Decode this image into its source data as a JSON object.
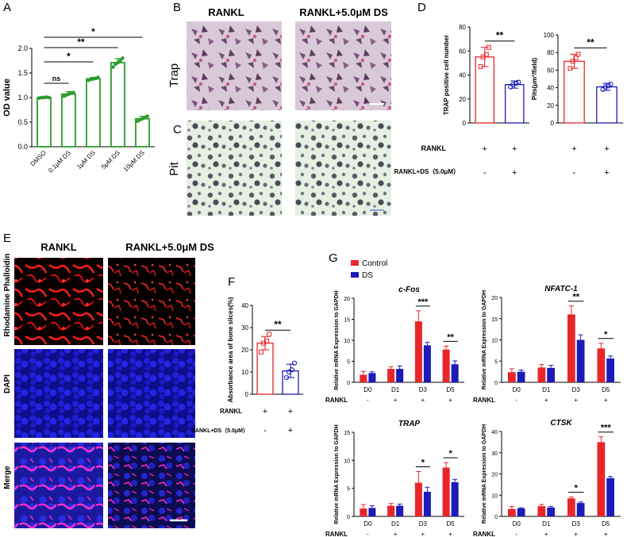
{
  "panel_letters": {
    "a": "A",
    "b": "B",
    "c": "C",
    "d": "D",
    "e": "E",
    "f": "F",
    "g": "G"
  },
  "panel_b": {
    "col1": "RANKL",
    "col2": "RANKL+5.0μM DS",
    "row1": "Trap"
  },
  "panel_c": {
    "row1": "Pit"
  },
  "panel_e": {
    "col1": "RANKL",
    "col2": "RANKL+5.0μM DS",
    "rows": [
      "Rhodamine Phalloidin",
      "DAPI",
      "Merge"
    ]
  },
  "legend_g": {
    "control": "Control",
    "ds": "DS"
  },
  "colors": {
    "control": "#e8262a",
    "ds": "#1b1bb8",
    "green": "#2e9b2e",
    "bg_trap": "#d6c7d6",
    "bg_pit": "#e4efe0"
  },
  "chart_data": [
    {
      "id": "A",
      "type": "bar",
      "ylabel": "OD value",
      "ylim": [
        0,
        2.0
      ],
      "yticks": [
        "0.0",
        "0.5",
        "1.0",
        "1.5",
        "2.0"
      ],
      "categories": [
        "DMSO",
        "0.1μM DS",
        "1μM DS",
        "5μM DS",
        "10μM DS"
      ],
      "values": [
        1.0,
        1.07,
        1.38,
        1.71,
        0.57
      ],
      "errors": [
        0.01,
        0.05,
        0.03,
        0.08,
        0.05
      ],
      "points": [
        [
          0.99,
          1.0,
          1.0,
          1.01,
          1.0
        ],
        [
          1.03,
          1.05,
          1.07,
          1.09,
          1.1
        ],
        [
          1.35,
          1.37,
          1.38,
          1.39,
          1.41
        ],
        [
          1.62,
          1.68,
          1.71,
          1.75,
          1.8
        ],
        [
          0.52,
          0.55,
          0.57,
          0.59,
          0.62
        ]
      ],
      "sig": [
        {
          "from": 0,
          "to": 1,
          "label": "ns"
        },
        {
          "from": 0,
          "to": 2,
          "label": "*"
        },
        {
          "from": 0,
          "to": 3,
          "label": "**"
        },
        {
          "from": 0,
          "to": 4,
          "label": "*"
        }
      ]
    },
    {
      "id": "D1",
      "type": "bar",
      "ylabel": "TRAP positive cell number",
      "ylim": [
        0,
        80
      ],
      "yticks": [
        "0",
        "20",
        "40",
        "60",
        "80"
      ],
      "values": [
        55,
        32
      ],
      "errors": [
        8,
        3
      ],
      "points": [
        [
          47,
          55,
          57,
          63
        ],
        [
          30,
          32,
          33,
          34
        ]
      ],
      "sig": "**",
      "rankl": [
        "+",
        "+"
      ],
      "ds": [
        "-",
        "+"
      ]
    },
    {
      "id": "D2",
      "type": "bar",
      "ylabel": "Pits(μm²/field)",
      "ylim": [
        0,
        100
      ],
      "yticks": [
        "0",
        "20",
        "40",
        "60",
        "80",
        "100"
      ],
      "values": [
        70,
        41
      ],
      "errors": [
        8,
        4
      ],
      "points": [
        [
          62,
          70,
          74,
          78
        ],
        [
          38,
          41,
          42,
          44
        ]
      ],
      "sig": "**",
      "rankl": [
        "+",
        "+"
      ],
      "ds": [
        "-",
        "+"
      ]
    },
    {
      "id": "F",
      "type": "bar",
      "ylabel": "Absorbance area of bone slices(%)",
      "ylim": [
        0,
        40
      ],
      "yticks": [
        "0",
        "10",
        "20",
        "30",
        "40"
      ],
      "values": [
        23,
        10.5
      ],
      "errors": [
        3,
        3
      ],
      "points": [
        [
          19,
          23,
          24,
          27
        ],
        [
          7.5,
          10,
          11,
          14
        ]
      ],
      "sig": "**",
      "rankl": [
        "+",
        "+"
      ],
      "ds": [
        "-",
        "+"
      ]
    },
    {
      "id": "G1",
      "type": "bar",
      "title": "c-Fos",
      "ylabel": "Relative mRNA Expression to GAPDH",
      "ylim": [
        0,
        20
      ],
      "yticks": [
        "0",
        "5",
        "10",
        "15",
        "20"
      ],
      "categories": [
        "D0",
        "D1",
        "D3",
        "D5"
      ],
      "series": [
        {
          "name": "Control",
          "values": [
            1.8,
            3.2,
            14.5,
            7.8
          ],
          "errors": [
            0.8,
            0.5,
            2.5,
            0.8
          ]
        },
        {
          "name": "DS",
          "values": [
            2.2,
            3.2,
            8.8,
            4.3
          ],
          "errors": [
            0.3,
            0.7,
            0.7,
            0.8
          ]
        }
      ],
      "sig": [
        {
          "cat": 2,
          "label": "***"
        },
        {
          "cat": 3,
          "label": "**"
        }
      ],
      "rankl": [
        "-",
        "+",
        "+",
        "+"
      ]
    },
    {
      "id": "G2",
      "type": "bar",
      "title": "NFATC-1",
      "ylabel": "Relative mRNA Expression to GAPDH",
      "ylim": [
        0,
        20
      ],
      "yticks": [
        "0",
        "5",
        "10",
        "15",
        "20"
      ],
      "categories": [
        "D0",
        "D1",
        "D3",
        "D5"
      ],
      "series": [
        {
          "name": "Control",
          "values": [
            2.4,
            3.5,
            16,
            8
          ],
          "errors": [
            0.8,
            0.7,
            2,
            1.2
          ]
        },
        {
          "name": "DS",
          "values": [
            2.5,
            3.4,
            10,
            5.6
          ],
          "errors": [
            0.4,
            0.6,
            1.2,
            0.6
          ]
        }
      ],
      "sig": [
        {
          "cat": 2,
          "label": "**"
        },
        {
          "cat": 3,
          "label": "*"
        }
      ],
      "rankl": [
        "-",
        "+",
        "+",
        "+"
      ]
    },
    {
      "id": "G3",
      "type": "bar",
      "title": "TRAP",
      "ylabel": "Relative mRNA Expression to GAPDH",
      "ylim": [
        0,
        15
      ],
      "yticks": [
        "0",
        "5",
        "10",
        "15"
      ],
      "categories": [
        "D0",
        "D1",
        "D3",
        "D5"
      ],
      "series": [
        {
          "name": "Control",
          "values": [
            1.4,
            1.9,
            6.0,
            8.7
          ],
          "errors": [
            0.7,
            0.4,
            2,
            0.9
          ]
        },
        {
          "name": "DS",
          "values": [
            1.5,
            1.9,
            4.4,
            6.1
          ],
          "errors": [
            0.4,
            0.3,
            0.8,
            0.5
          ]
        }
      ],
      "sig": [
        {
          "cat": 2,
          "label": "*"
        },
        {
          "cat": 3,
          "label": "*"
        }
      ],
      "rankl": [
        "-",
        "+",
        "+",
        "+"
      ]
    },
    {
      "id": "G4",
      "type": "bar",
      "title": "CTSK",
      "ylabel": "Relative mRNA Expression to GAPDH",
      "ylim": [
        0,
        40
      ],
      "yticks": [
        "0",
        "10",
        "20",
        "30",
        "40"
      ],
      "categories": [
        "D0",
        "D1",
        "D3",
        "D5"
      ],
      "series": [
        {
          "name": "Control",
          "values": [
            3.5,
            4.8,
            8.5,
            35
          ],
          "errors": [
            1.2,
            0.8,
            0.6,
            2.5
          ]
        },
        {
          "name": "DS",
          "values": [
            3.8,
            4.2,
            6.3,
            18
          ],
          "errors": [
            0.3,
            0.5,
            0.5,
            0.8
          ]
        }
      ],
      "sig": [
        {
          "cat": 2,
          "label": "*"
        },
        {
          "cat": 3,
          "label": "***"
        }
      ],
      "rankl": [
        "-",
        "+",
        "+",
        "+"
      ]
    }
  ],
  "row_labels": {
    "rankl": "RANKL",
    "rankl_ds": "RANKL+DS（5.0μM）"
  }
}
